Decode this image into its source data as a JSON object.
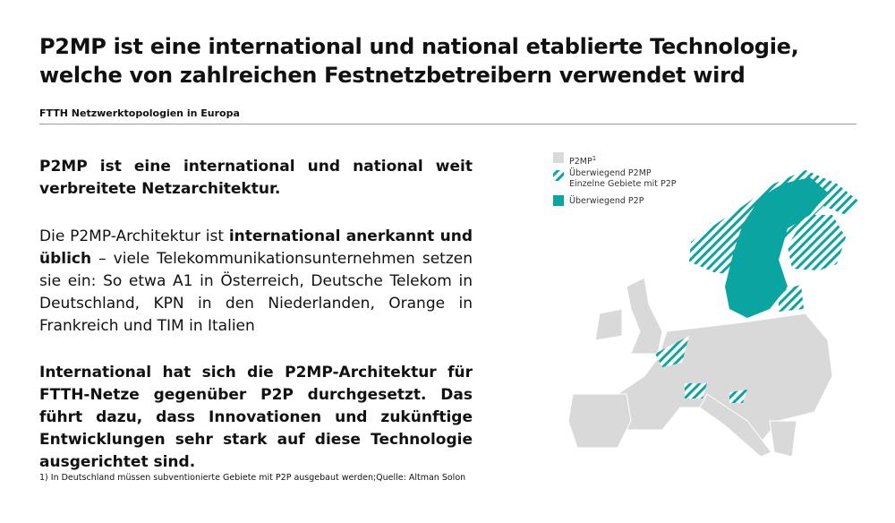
{
  "header": {
    "title": "P2MP ist eine international und national etablierte Technologie, welche von zahlreichen Festnetzbetreibern verwendet wird",
    "subtitle": "FTTH Netzwerktopologien in Europa"
  },
  "body": {
    "paragraph_1": "P2MP ist eine international und national weit verbreitete Netzarchitektur.",
    "paragraph_2": {
      "before": "Die P2MP-Architektur ist ",
      "bold": "international anerkannt und üblich",
      "after": " – viele Telekommunikationsunternehmen setzen sie ein: So etwa A1 in Österreich, Deutsche Telekom in Deutschland, KPN in den Niederlanden, Orange in Frankreich und TIM in Italien"
    },
    "paragraph_3": "International hat sich die P2MP-Architektur für FTTH-Netze gegenüber P2P durchgesetzt. Das führt dazu, dass Innovationen und zukünftige Entwicklungen sehr stark auf diese Technologie ausgerichtet sind."
  },
  "legend": {
    "items": [
      {
        "label": "P2MP",
        "superscript": "1"
      },
      {
        "label": "Überwiegend P2MP",
        "sublabel": "Einzelne Gebiete mit P2P"
      },
      {
        "label": "Überwiegend P2P"
      }
    ]
  },
  "footnote": "1) In Deutschland müssen subventionierte Gebiete mit P2P ausgebaut werden;Quelle: Altman Solon"
}
